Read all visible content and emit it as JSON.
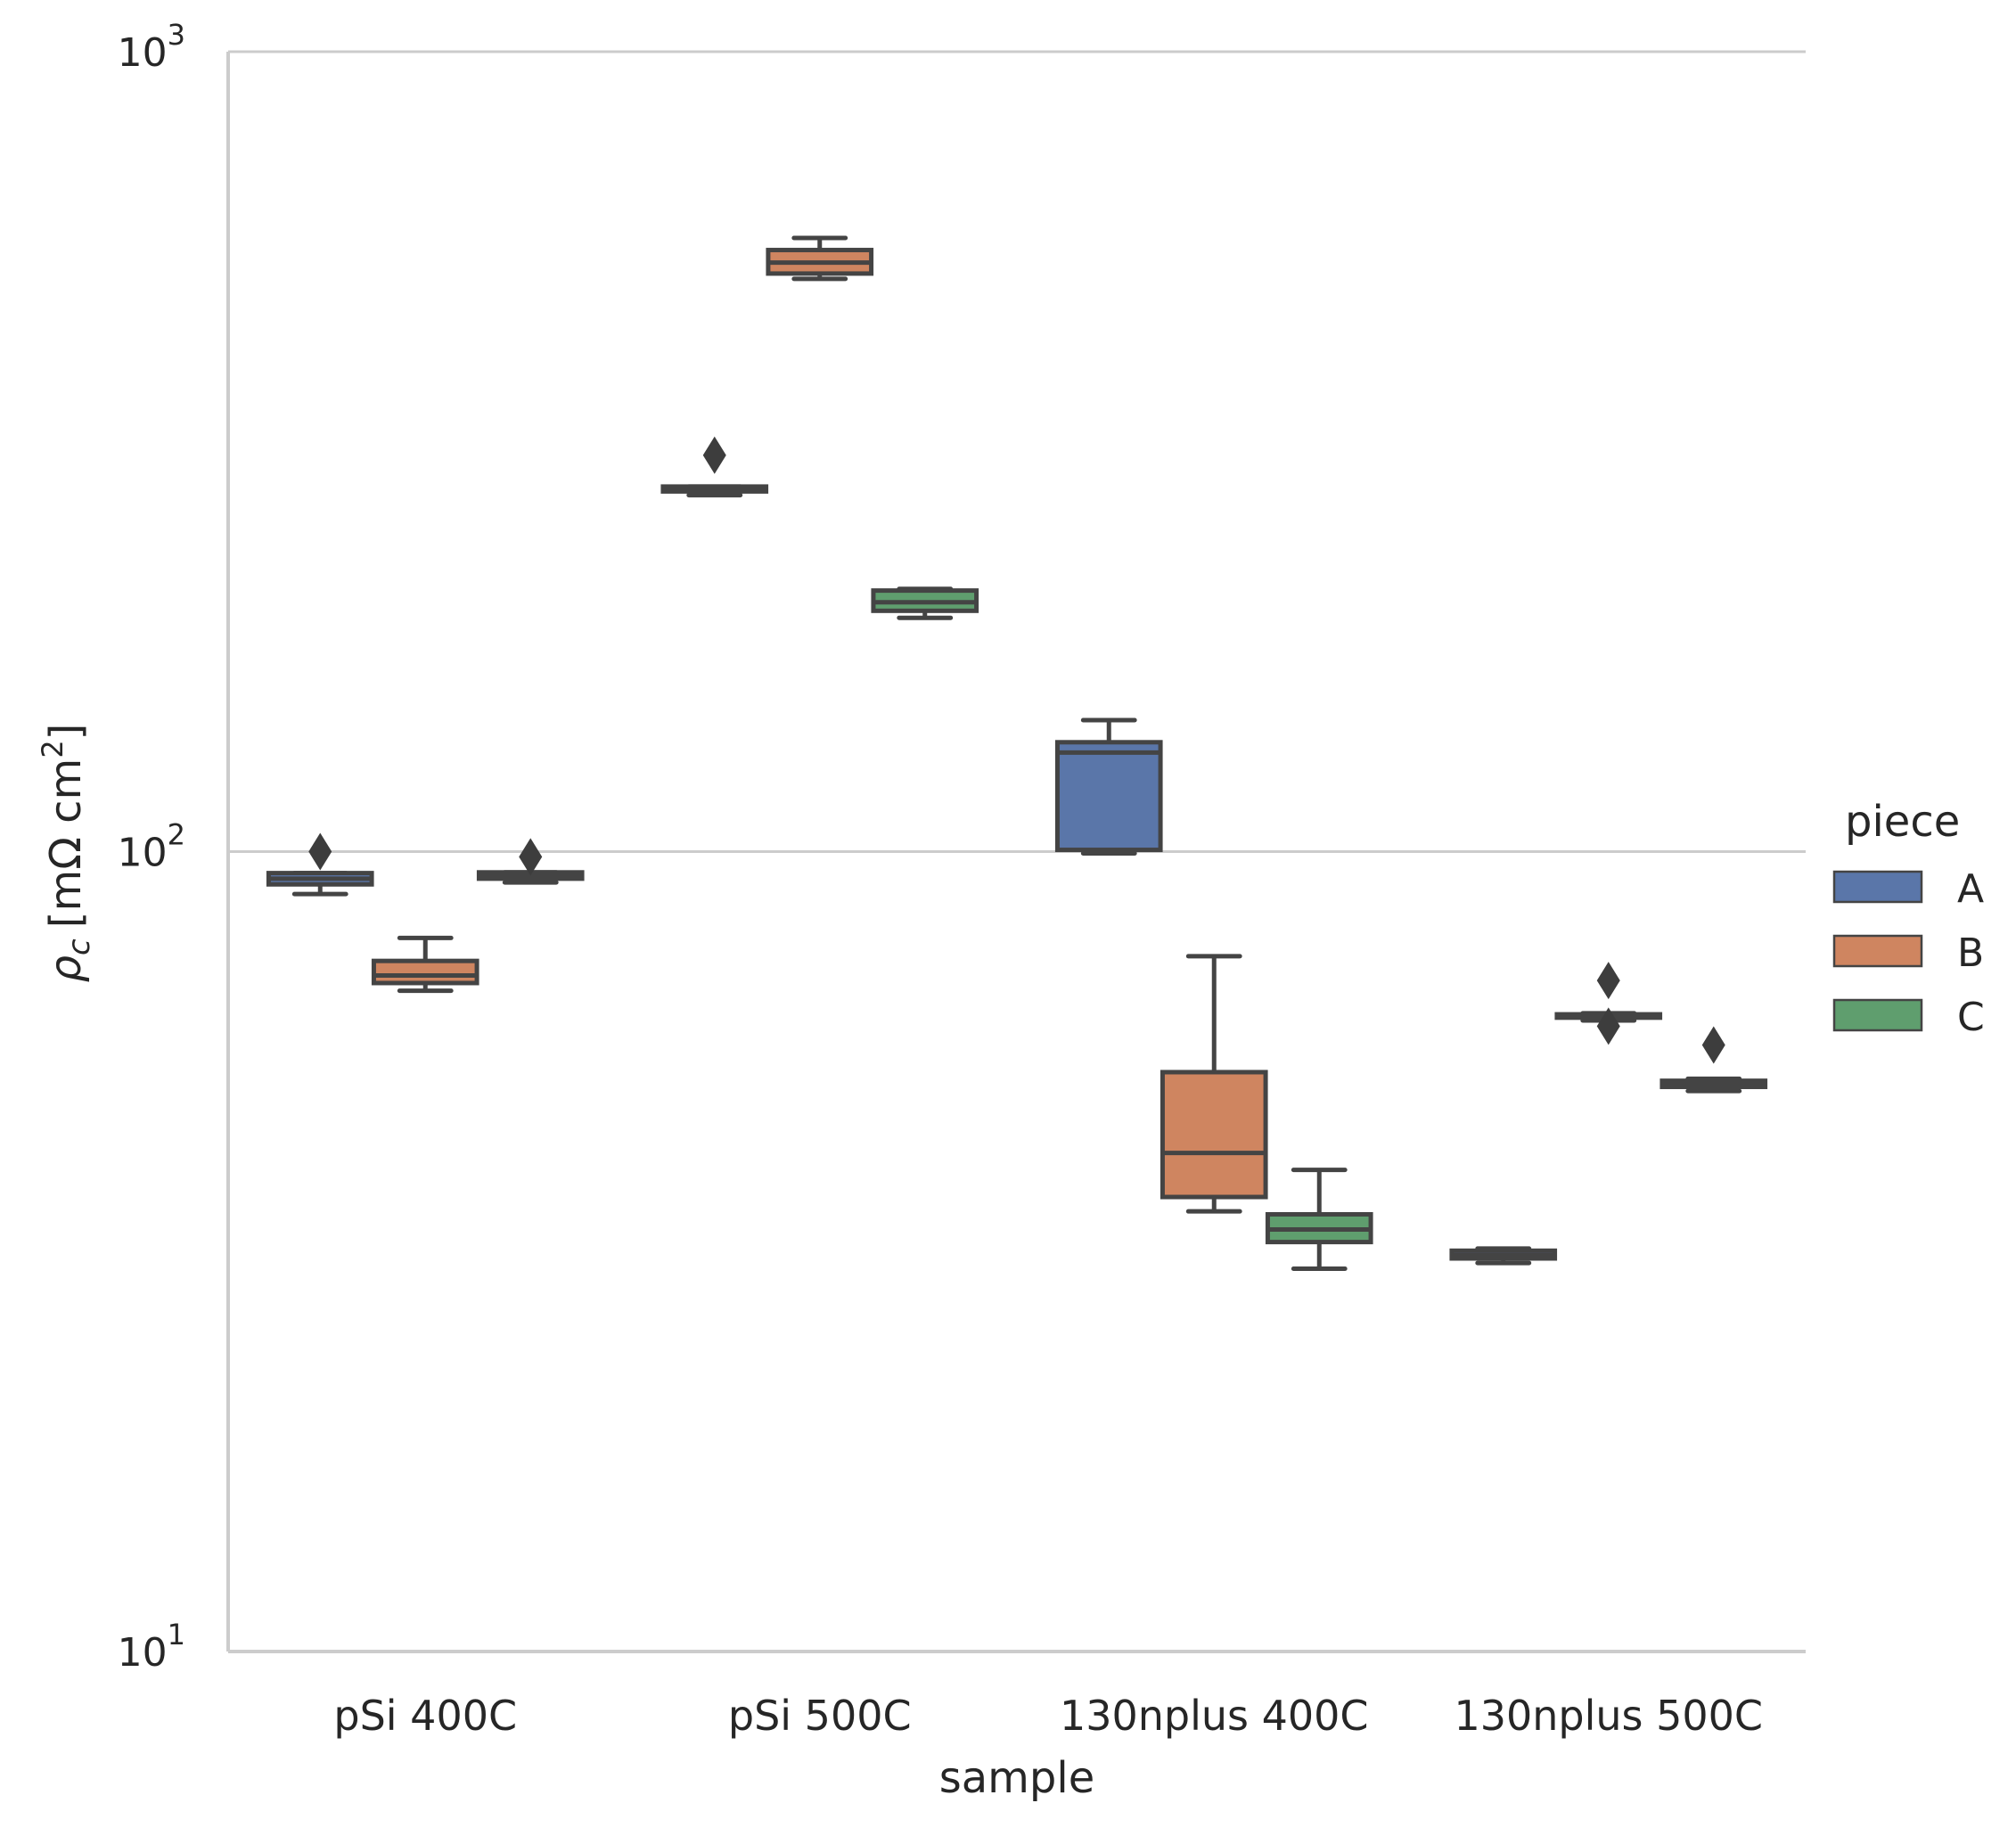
{
  "chart_data": {
    "type": "box",
    "xlabel": "sample",
    "ylabel": "ρc [mΩ cm²]",
    "ylabel_parts": {
      "symbol": "ρ",
      "subscript": "c",
      "unit": "[mΩ cm",
      "unit_sup": "2",
      "close": "]"
    },
    "yscale": "log",
    "ylim": [
      10,
      1000
    ],
    "y_ticks": [
      {
        "base": "10",
        "exp": "1",
        "value": 10
      },
      {
        "base": "10",
        "exp": "2",
        "value": 100
      },
      {
        "base": "10",
        "exp": "3",
        "value": 1000
      }
    ],
    "grid": "horizontal",
    "categories": [
      "pSi 400C",
      "pSi 500C",
      "130nplus 400C",
      "130nplus 500C"
    ],
    "legend": {
      "title": "piece",
      "position": "right"
    },
    "series": [
      {
        "name": "A",
        "color": "#5a76a9",
        "boxes": [
          {
            "whislo": 88.5,
            "q1": 91,
            "med": 92.5,
            "q3": 94,
            "whishi": 94,
            "fliers": [
              100
            ]
          },
          {
            "whislo": 279,
            "q1": 282,
            "med": 284,
            "q3": 286,
            "whishi": 286,
            "fliers": [
              313
            ]
          },
          {
            "whislo": 99.5,
            "q1": 100.5,
            "med": 133,
            "q3": 137,
            "whishi": 146,
            "fliers": []
          },
          {
            "whislo": 30.6,
            "q1": 31.0,
            "med": 31.3,
            "q3": 31.7,
            "whishi": 31.9,
            "fliers": []
          }
        ]
      },
      {
        "name": "B",
        "color": "#cf8560",
        "boxes": [
          {
            "whislo": 67,
            "q1": 68.5,
            "med": 70,
            "q3": 73,
            "whishi": 78,
            "fliers": []
          },
          {
            "whislo": 520,
            "q1": 528,
            "med": 545,
            "q3": 565,
            "whishi": 585,
            "fliers": []
          },
          {
            "whislo": 35.5,
            "q1": 37,
            "med": 42,
            "q3": 53,
            "whishi": 74,
            "fliers": []
          },
          {
            "whislo": 61.5,
            "q1": 62,
            "med": 62.3,
            "q3": 62.6,
            "whishi": 62.8,
            "fliers": [
              60.5,
              69
            ]
          }
        ]
      },
      {
        "name": "C",
        "color": "#5f9e6e",
        "boxes": [
          {
            "whislo": 91.5,
            "q1": 92.5,
            "med": 93.3,
            "q3": 94.2,
            "whishi": 94.2,
            "fliers": [
              98.5
            ]
          },
          {
            "whislo": 196,
            "q1": 200,
            "med": 205,
            "q3": 212,
            "whishi": 213,
            "fliers": []
          },
          {
            "whislo": 30.1,
            "q1": 32.5,
            "med": 33.7,
            "q3": 35.2,
            "whishi": 40,
            "fliers": []
          },
          {
            "whislo": 50.2,
            "q1": 50.8,
            "med": 51.2,
            "q3": 51.7,
            "whishi": 52.0,
            "fliers": [
              57.3
            ]
          }
        ]
      }
    ]
  }
}
